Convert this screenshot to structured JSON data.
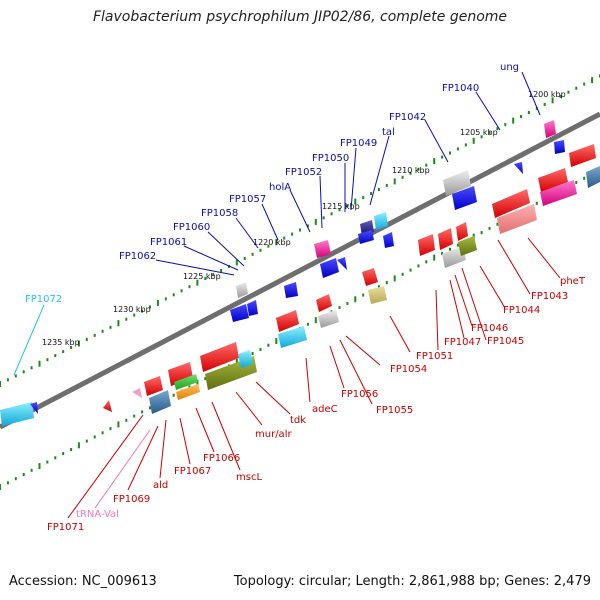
{
  "title": "Flavobacterium psychrophilum JIP02/86, complete genome",
  "footer": {
    "accession": "Accession: NC_009613",
    "summary": "Topology: circular; Length: 2,861,988 bp; Genes: 2,479"
  },
  "colors": {
    "top_label": "#0b0fb0",
    "bottom_label": "#cc0000",
    "trna_label": "#f07ab8",
    "cyan_label": "#26c6e8",
    "backbone": "#808080",
    "tick": "#1a8c1a"
  },
  "kbp_markers": [
    "1200 kbp",
    "1205 kbp",
    "1210 kbp",
    "1215 kbp",
    "1220 kbp",
    "1225 kbp",
    "1230 kbp",
    "1235 kbp"
  ],
  "top_labels": [
    "ung",
    "FP1040",
    "FP1042",
    "tal",
    "FP1049",
    "FP1050",
    "FP1052",
    "holA",
    "FP1057",
    "FP1058",
    "FP1060",
    "FP1061",
    "FP1062"
  ],
  "cyan_labels": [
    "FP1072"
  ],
  "bottom_labels": [
    "pheT",
    "FP1043",
    "FP1044",
    "FP1045",
    "FP1046",
    "FP1047",
    "FP1051",
    "FP1054",
    "FP1055",
    "FP1056",
    "adeC",
    "tdk",
    "mur/alr",
    "mscL",
    "FP1066",
    "FP1067",
    "ald",
    "FP1069",
    "FP1071"
  ],
  "trna_labels": [
    "tRNA-Val"
  ]
}
